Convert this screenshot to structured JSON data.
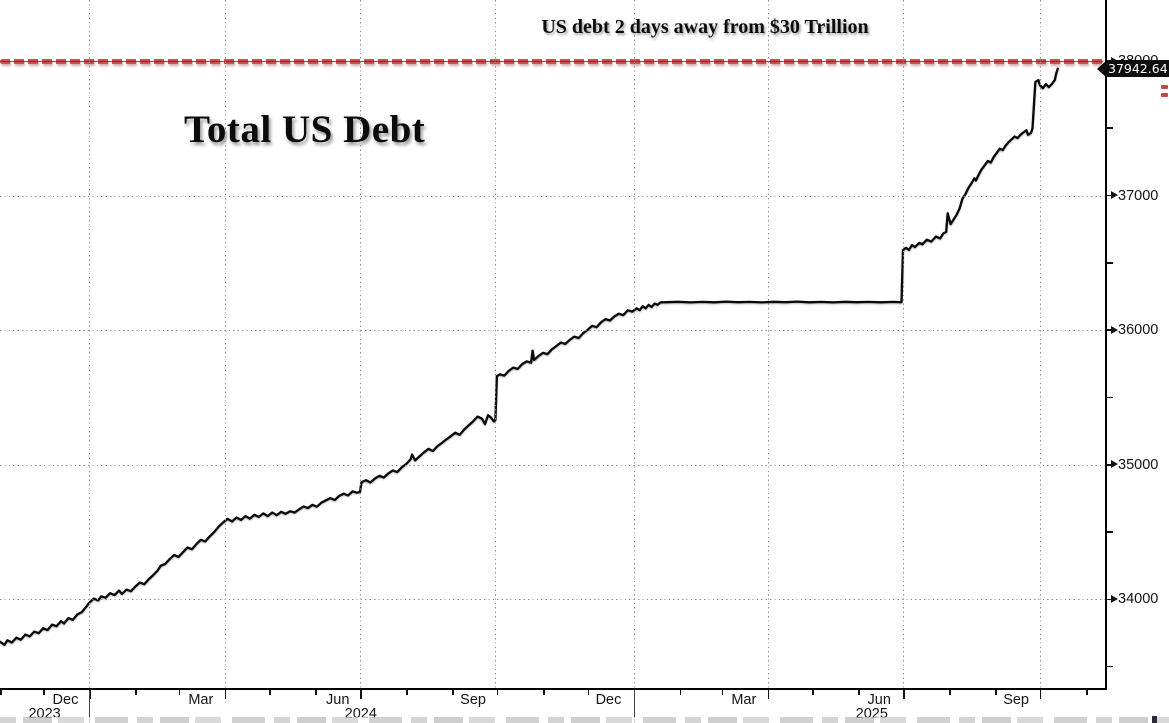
{
  "titles": {
    "annotation": "US debt 2 days away from $30 Trillion",
    "chart_title": "Total US Debt"
  },
  "value_tag": {
    "text": "37942.64"
  },
  "colors": {
    "red_line": "#cf4e50",
    "series": "#0a0a0a",
    "tag_bg": "#0d0d0d",
    "tag_text": "#ffffff"
  },
  "chart_data": {
    "type": "line",
    "title": "Total US Debt",
    "annotation": "US debt 2 days away from $30 Trillion",
    "units": "USD billions",
    "last_value": 37942.64,
    "last_value_label": "37942.64",
    "threshold_line": {
      "value": 38000,
      "style": "dashed",
      "color": "#cf4e50"
    },
    "y_axis": {
      "side": "right",
      "major_ticks": [
        38000,
        37000,
        36000,
        35000,
        34000
      ],
      "major_tick_labels": [
        "38000",
        "37000",
        "36000",
        "35000",
        "34000"
      ],
      "minor_ticks": [
        37500,
        36500,
        35500,
        34500,
        33500
      ],
      "range_top": 38453,
      "range_bottom": 33326,
      "grid": true
    },
    "x_axis": {
      "range": "Nov 2023 - mid Oct 2025 (day 0 = Nov 2 2023)",
      "month_labels": [
        {
          "label": "Dec",
          "day": 44
        },
        {
          "label": "Mar",
          "day": 135
        },
        {
          "label": "Jun",
          "day": 227
        },
        {
          "label": "Sep",
          "day": 318
        },
        {
          "label": "Dec",
          "day": 409
        },
        {
          "label": "Mar",
          "day": 500
        },
        {
          "label": "Jun",
          "day": 591
        },
        {
          "label": "Sep",
          "day": 683
        }
      ],
      "year_labels": [
        {
          "label": "2023",
          "day": 30
        },
        {
          "label": "2024",
          "day": 242.5
        },
        {
          "label": "2025",
          "day": 586
        }
      ],
      "year_separator_days": [
        60,
        426
      ],
      "quarter_gridline_days": [
        60,
        151,
        242,
        333,
        426,
        516,
        607,
        699
      ],
      "month_tick_days": [
        29,
        60,
        91,
        120,
        151,
        181,
        212,
        242,
        273,
        304,
        334,
        365,
        395,
        426,
        457,
        485,
        516,
        546,
        577,
        607,
        638,
        669,
        699,
        730
      ],
      "grid": true
    },
    "series": [
      {
        "name": "Total US Debt",
        "color": "#0a0a0a",
        "points": [
          [
            0,
            33685
          ],
          [
            3,
            33662
          ],
          [
            5,
            33695
          ],
          [
            8,
            33680
          ],
          [
            11,
            33715
          ],
          [
            14,
            33700
          ],
          [
            17,
            33738
          ],
          [
            20,
            33725
          ],
          [
            23,
            33760
          ],
          [
            26,
            33748
          ],
          [
            29,
            33785
          ],
          [
            32,
            33772
          ],
          [
            35,
            33812
          ],
          [
            38,
            33800
          ],
          [
            41,
            33838
          ],
          [
            43,
            33820
          ],
          [
            46,
            33860
          ],
          [
            49,
            33848
          ],
          [
            52,
            33888
          ],
          [
            55,
            33905
          ],
          [
            58,
            33945
          ],
          [
            60,
            33975
          ],
          [
            63,
            34005
          ],
          [
            66,
            33992
          ],
          [
            68,
            34022
          ],
          [
            71,
            34012
          ],
          [
            74,
            34045
          ],
          [
            77,
            34032
          ],
          [
            80,
            34065
          ],
          [
            82,
            34040
          ],
          [
            85,
            34072
          ],
          [
            88,
            34060
          ],
          [
            91,
            34095
          ],
          [
            94,
            34125
          ],
          [
            97,
            34112
          ],
          [
            100,
            34150
          ],
          [
            103,
            34180
          ],
          [
            106,
            34215
          ],
          [
            108,
            34250
          ],
          [
            111,
            34262
          ],
          [
            114,
            34298
          ],
          [
            117,
            34330
          ],
          [
            120,
            34315
          ],
          [
            123,
            34350
          ],
          [
            126,
            34385
          ],
          [
            129,
            34372
          ],
          [
            132,
            34410
          ],
          [
            135,
            34442
          ],
          [
            138,
            34430
          ],
          [
            141,
            34468
          ],
          [
            144,
            34500
          ],
          [
            147,
            34540
          ],
          [
            150,
            34572
          ],
          [
            153,
            34598
          ],
          [
            156,
            34578
          ],
          [
            159,
            34608
          ],
          [
            162,
            34590
          ],
          [
            165,
            34618
          ],
          [
            168,
            34600
          ],
          [
            171,
            34628
          ],
          [
            174,
            34612
          ],
          [
            177,
            34638
          ],
          [
            180,
            34618
          ],
          [
            183,
            34645
          ],
          [
            186,
            34625
          ],
          [
            189,
            34650
          ],
          [
            192,
            34635
          ],
          [
            195,
            34655
          ],
          [
            198,
            34645
          ],
          [
            201,
            34668
          ],
          [
            204,
            34690
          ],
          [
            207,
            34678
          ],
          [
            210,
            34702
          ],
          [
            213,
            34688
          ],
          [
            216,
            34718
          ],
          [
            219,
            34735
          ],
          [
            222,
            34752
          ],
          [
            225,
            34738
          ],
          [
            228,
            34768
          ],
          [
            231,
            34785
          ],
          [
            234,
            34772
          ],
          [
            237,
            34802
          ],
          [
            240,
            34792
          ],
          [
            242,
            34798
          ],
          [
            243,
            34870
          ],
          [
            246,
            34885
          ],
          [
            249,
            34868
          ],
          [
            252,
            34898
          ],
          [
            255,
            34918
          ],
          [
            258,
            34905
          ],
          [
            261,
            34935
          ],
          [
            264,
            34958
          ],
          [
            267,
            34945
          ],
          [
            270,
            34980
          ],
          [
            273,
            35005
          ],
          [
            276,
            35040
          ],
          [
            277,
            35075
          ],
          [
            279,
            35032
          ],
          [
            282,
            35062
          ],
          [
            285,
            35092
          ],
          [
            288,
            35118
          ],
          [
            291,
            35102
          ],
          [
            294,
            35138
          ],
          [
            297,
            35162
          ],
          [
            300,
            35188
          ],
          [
            303,
            35212
          ],
          [
            306,
            35238
          ],
          [
            309,
            35222
          ],
          [
            312,
            35262
          ],
          [
            315,
            35292
          ],
          [
            318,
            35322
          ],
          [
            321,
            35358
          ],
          [
            324,
            35342
          ],
          [
            326,
            35302
          ],
          [
            328,
            35368
          ],
          [
            330,
            35352
          ],
          [
            332,
            35322
          ],
          [
            333,
            35332
          ],
          [
            334,
            35658
          ],
          [
            336,
            35672
          ],
          [
            339,
            35662
          ],
          [
            342,
            35698
          ],
          [
            345,
            35722
          ],
          [
            348,
            35712
          ],
          [
            351,
            35748
          ],
          [
            354,
            35768
          ],
          [
            357,
            35758
          ],
          [
            358,
            35848
          ],
          [
            359,
            35778
          ],
          [
            362,
            35808
          ],
          [
            365,
            35832
          ],
          [
            368,
            35822
          ],
          [
            371,
            35858
          ],
          [
            374,
            35882
          ],
          [
            377,
            35908
          ],
          [
            380,
            35898
          ],
          [
            383,
            35928
          ],
          [
            386,
            35952
          ],
          [
            389,
            35942
          ],
          [
            392,
            35978
          ],
          [
            395,
            36002
          ],
          [
            398,
            36032
          ],
          [
            401,
            36022
          ],
          [
            404,
            36058
          ],
          [
            407,
            36082
          ],
          [
            410,
            36072
          ],
          [
            413,
            36102
          ],
          [
            416,
            36122
          ],
          [
            419,
            36112
          ],
          [
            422,
            36148
          ],
          [
            425,
            36138
          ],
          [
            428,
            36162
          ],
          [
            430,
            36148
          ],
          [
            432,
            36178
          ],
          [
            434,
            36162
          ],
          [
            436,
            36188
          ],
          [
            438,
            36172
          ],
          [
            440,
            36198
          ],
          [
            442,
            36188
          ],
          [
            444,
            36206
          ],
          [
            448,
            36208
          ],
          [
            456,
            36211
          ],
          [
            464,
            36206
          ],
          [
            472,
            36210
          ],
          [
            480,
            36207
          ],
          [
            488,
            36212
          ],
          [
            496,
            36208
          ],
          [
            504,
            36210
          ],
          [
            512,
            36206
          ],
          [
            520,
            36211
          ],
          [
            528,
            36208
          ],
          [
            536,
            36212
          ],
          [
            544,
            36207
          ],
          [
            552,
            36210
          ],
          [
            560,
            36206
          ],
          [
            568,
            36211
          ],
          [
            576,
            36208
          ],
          [
            584,
            36210
          ],
          [
            592,
            36207
          ],
          [
            600,
            36210
          ],
          [
            606,
            36208
          ],
          [
            607,
            36595
          ],
          [
            609,
            36612
          ],
          [
            611,
            36596
          ],
          [
            613,
            36632
          ],
          [
            615,
            36618
          ],
          [
            618,
            36648
          ],
          [
            620,
            36638
          ],
          [
            623,
            36672
          ],
          [
            626,
            36658
          ],
          [
            629,
            36695
          ],
          [
            632,
            36682
          ],
          [
            634,
            36718
          ],
          [
            636,
            36730
          ],
          [
            637,
            36868
          ],
          [
            639,
            36788
          ],
          [
            641,
            36822
          ],
          [
            643,
            36858
          ],
          [
            645,
            36905
          ],
          [
            647,
            36978
          ],
          [
            649,
            37012
          ],
          [
            651,
            37058
          ],
          [
            653,
            37092
          ],
          [
            655,
            37128
          ],
          [
            656,
            37112
          ],
          [
            658,
            37158
          ],
          [
            660,
            37198
          ],
          [
            662,
            37228
          ],
          [
            664,
            37258
          ],
          [
            666,
            37245
          ],
          [
            668,
            37288
          ],
          [
            670,
            37318
          ],
          [
            672,
            37348
          ],
          [
            674,
            37338
          ],
          [
            676,
            37372
          ],
          [
            678,
            37398
          ],
          [
            680,
            37418
          ],
          [
            682,
            37438
          ],
          [
            684,
            37428
          ],
          [
            686,
            37452
          ],
          [
            688,
            37470
          ],
          [
            690,
            37486
          ],
          [
            691,
            37452
          ],
          [
            693,
            37465
          ],
          [
            694,
            37500
          ],
          [
            696,
            37845
          ],
          [
            698,
            37858
          ],
          [
            699,
            37820
          ],
          [
            701,
            37798
          ],
          [
            703,
            37828
          ],
          [
            705,
            37806
          ],
          [
            707,
            37828
          ],
          [
            709,
            37858
          ],
          [
            710,
            37910
          ],
          [
            711,
            37942.64
          ]
        ]
      }
    ]
  }
}
